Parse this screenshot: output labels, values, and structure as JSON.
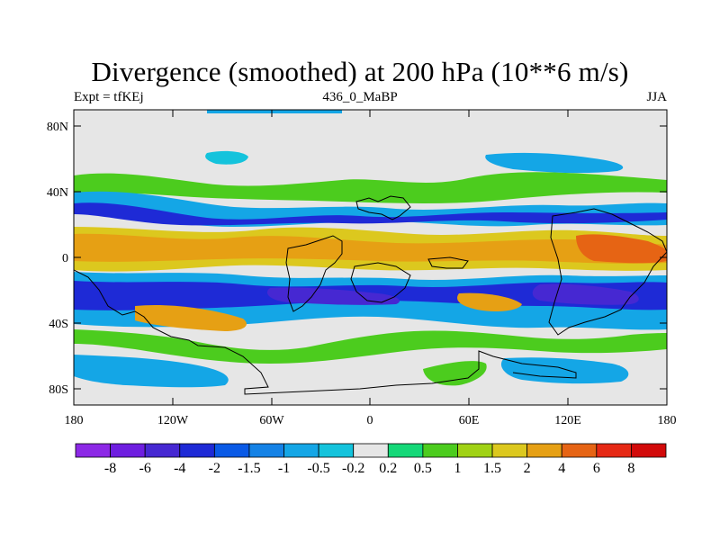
{
  "title": "Divergence (smoothed) at 200 hPa (10**6 m/s)",
  "subtitle_left": "Expt = tfKEj",
  "subtitle_center": "436_0_MaBP",
  "subtitle_right": "JJA",
  "y_ticks": [
    "80N",
    "40N",
    "0",
    "40S",
    "80S"
  ],
  "x_ticks": [
    "180",
    "120W",
    "60W",
    "0",
    "60E",
    "120E",
    "180"
  ],
  "legend": {
    "labels": [
      "-8",
      "-6",
      "-4",
      "-2",
      "-1.5",
      "-1",
      "-0.5",
      "-0.2",
      "0.2",
      "0.5",
      "1",
      "1.5",
      "2",
      "4",
      "6",
      "8"
    ],
    "colors": [
      "#8c28e6",
      "#6e1ee0",
      "#4628d2",
      "#1e2ad6",
      "#0a5ae6",
      "#1482e6",
      "#14a6e6",
      "#14c3dc",
      "#e6e6e6",
      "#14d878",
      "#4ccc1e",
      "#a0d214",
      "#dcc81e",
      "#e6a014",
      "#e66414",
      "#e62814",
      "#d20a0a"
    ]
  },
  "colors": {
    "background": "#e6e6e6",
    "coastline": "#000000"
  }
}
